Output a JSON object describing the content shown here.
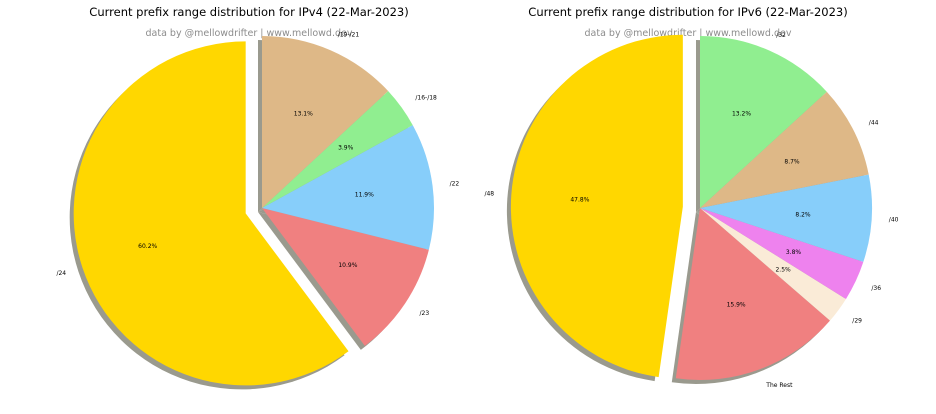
{
  "chart_data": [
    {
      "type": "pie",
      "title": "Current prefix range distribution for IPv4 (22-Mar-2023)",
      "subtitle": "data by @mellowdrifter | www.mellowd.dev",
      "categories": [
        "/24",
        "/23",
        "/22",
        "/16-/18",
        "/19-/21"
      ],
      "values": [
        60.2,
        10.9,
        11.9,
        3.9,
        13.1
      ],
      "value_labels": [
        "60.2%",
        "10.9%",
        "11.9%",
        "3.9%",
        "13.1%"
      ],
      "colors": [
        "#ffd700",
        "#f08080",
        "#87cefa",
        "#90ee90",
        "#deb887"
      ],
      "explode": [
        0.1,
        0,
        0,
        0,
        0
      ],
      "start_angle_deg": 90,
      "direction": "counterclockwise",
      "shadow": true
    },
    {
      "type": "pie",
      "title": "Current prefix range distribution for IPv6 (22-Mar-2023)",
      "subtitle": "data by @mellowdrifter | www.mellowd.dev",
      "categories": [
        "/48",
        "The Rest",
        "/29",
        "/36",
        "/40",
        "/44",
        "/32"
      ],
      "values": [
        47.8,
        15.9,
        2.5,
        3.8,
        8.2,
        8.7,
        13.2
      ],
      "value_labels": [
        "47.8%",
        "15.9%",
        "2.5%",
        "3.8%",
        "8.2%",
        "8.7%",
        "13.2%"
      ],
      "colors": [
        "#ffd700",
        "#f08080",
        "#faebd7",
        "#ee82ee",
        "#87cefa",
        "#deb887",
        "#90ee90"
      ],
      "explode": [
        0.1,
        0,
        0,
        0,
        0,
        0,
        0
      ],
      "start_angle_deg": 90,
      "direction": "counterclockwise",
      "shadow": true
    }
  ]
}
